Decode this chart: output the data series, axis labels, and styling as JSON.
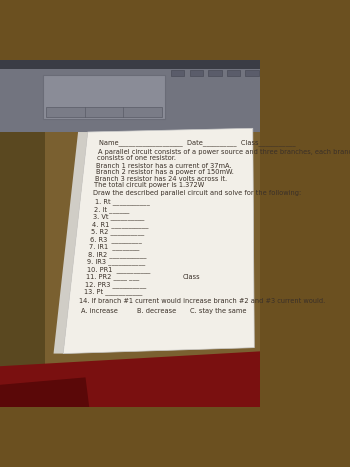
{
  "bg_wood_color": "#8B6914",
  "bg_dark_color": "#1a1a1a",
  "device_color": "#7a7a8a",
  "device_detail_color": "#9a9aaa",
  "paper_color": "#f0ede6",
  "text_color": "#3a3028",
  "red_cloth_color": "#8B1010",
  "header": "Name___________________  Date__________  Class___________",
  "intro1": "A parallel circuit consists of a power source and three branches, each branch",
  "intro2": "consists of one resistor.",
  "given1": "Branch 1 resistor has a current of 37mA.",
  "given2": "Branch 2 resistor has a power of 150mW.",
  "given3": "Branch 3 resistor has 24 volts across it.",
  "given4": "The total circuit power is 1.372W",
  "draw_instr": "Draw the described parallel circuit and solve for the following:",
  "items": [
    "1. Rt ___________",
    "2. It ______",
    "3. Vt __________",
    "4. R1 ___________",
    "5. R2 __________",
    "6. R3  _________",
    "7. IR1  ________",
    "8. IR2 ___________",
    "9. IR3 ___________",
    "10. PR1  __________",
    "11. PR2 ____ ___",
    "12. PR3 __________",
    "13. Pt ___________"
  ],
  "q14": "14. If branch #1 current would increase branch #2 and #3 current would.",
  "ans_a": "A. increase",
  "ans_b": "B. decrease",
  "ans_c": "C. stay the same",
  "class_label": "Class",
  "font_size": 5.5
}
